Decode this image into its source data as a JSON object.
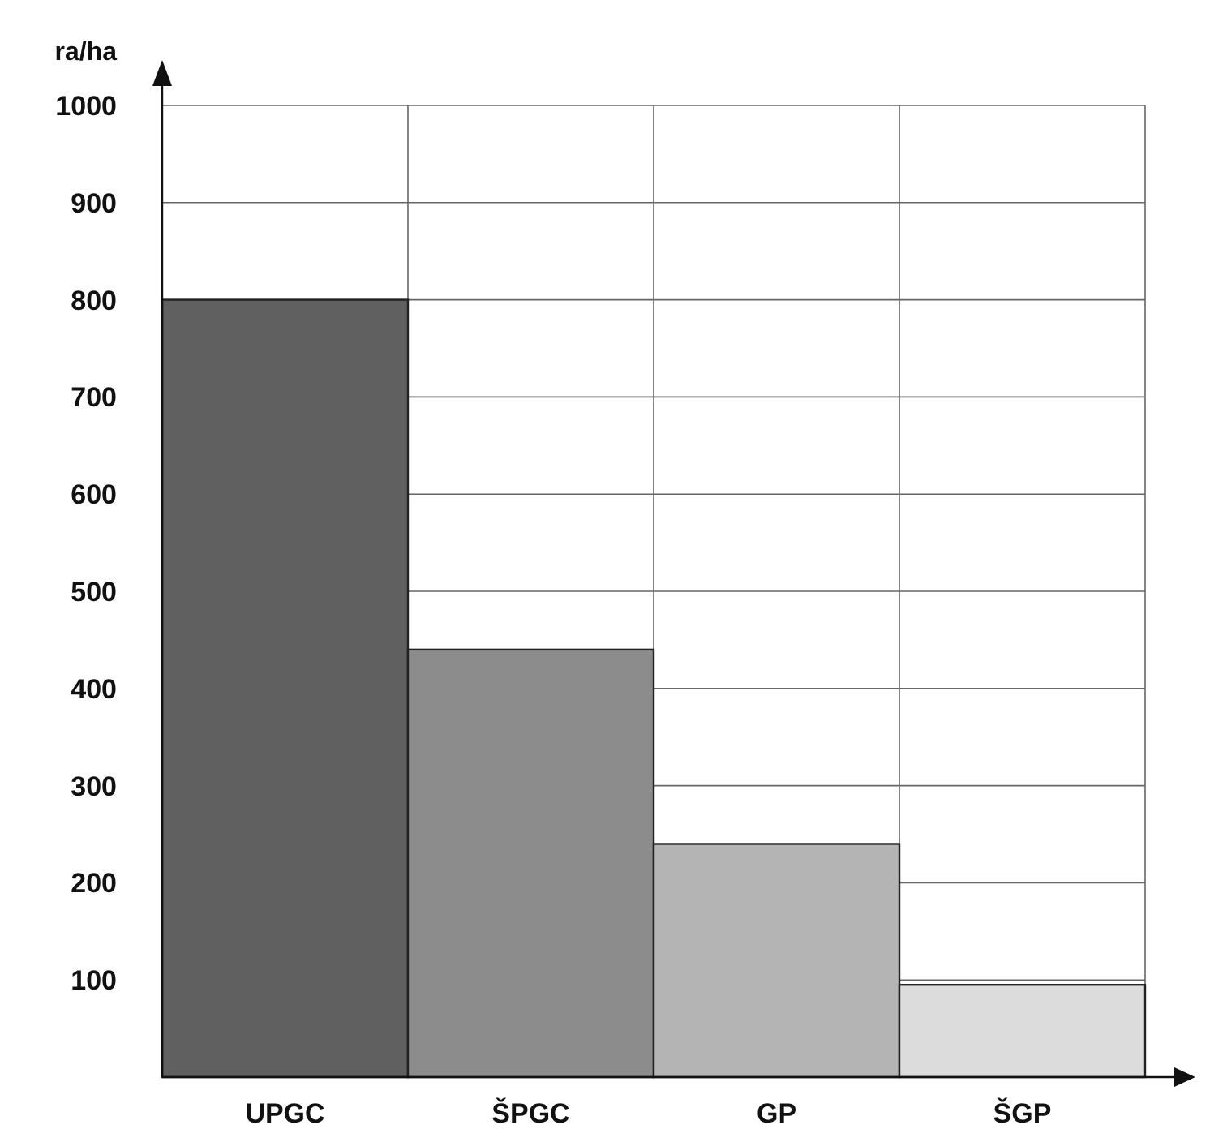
{
  "chart_data": {
    "type": "bar",
    "ylabel": "ra/ha",
    "categories": [
      "UPGC",
      "ŠPGC",
      "GP",
      "ŠGP"
    ],
    "values": [
      800,
      440,
      240,
      95
    ],
    "colors": [
      "#606060",
      "#8c8c8c",
      "#b4b4b4",
      "#dcdcdc"
    ],
    "ylim": [
      0,
      1000
    ],
    "yticks": [
      100,
      200,
      300,
      400,
      500,
      600,
      700,
      800,
      900,
      1000
    ],
    "grid": true
  }
}
